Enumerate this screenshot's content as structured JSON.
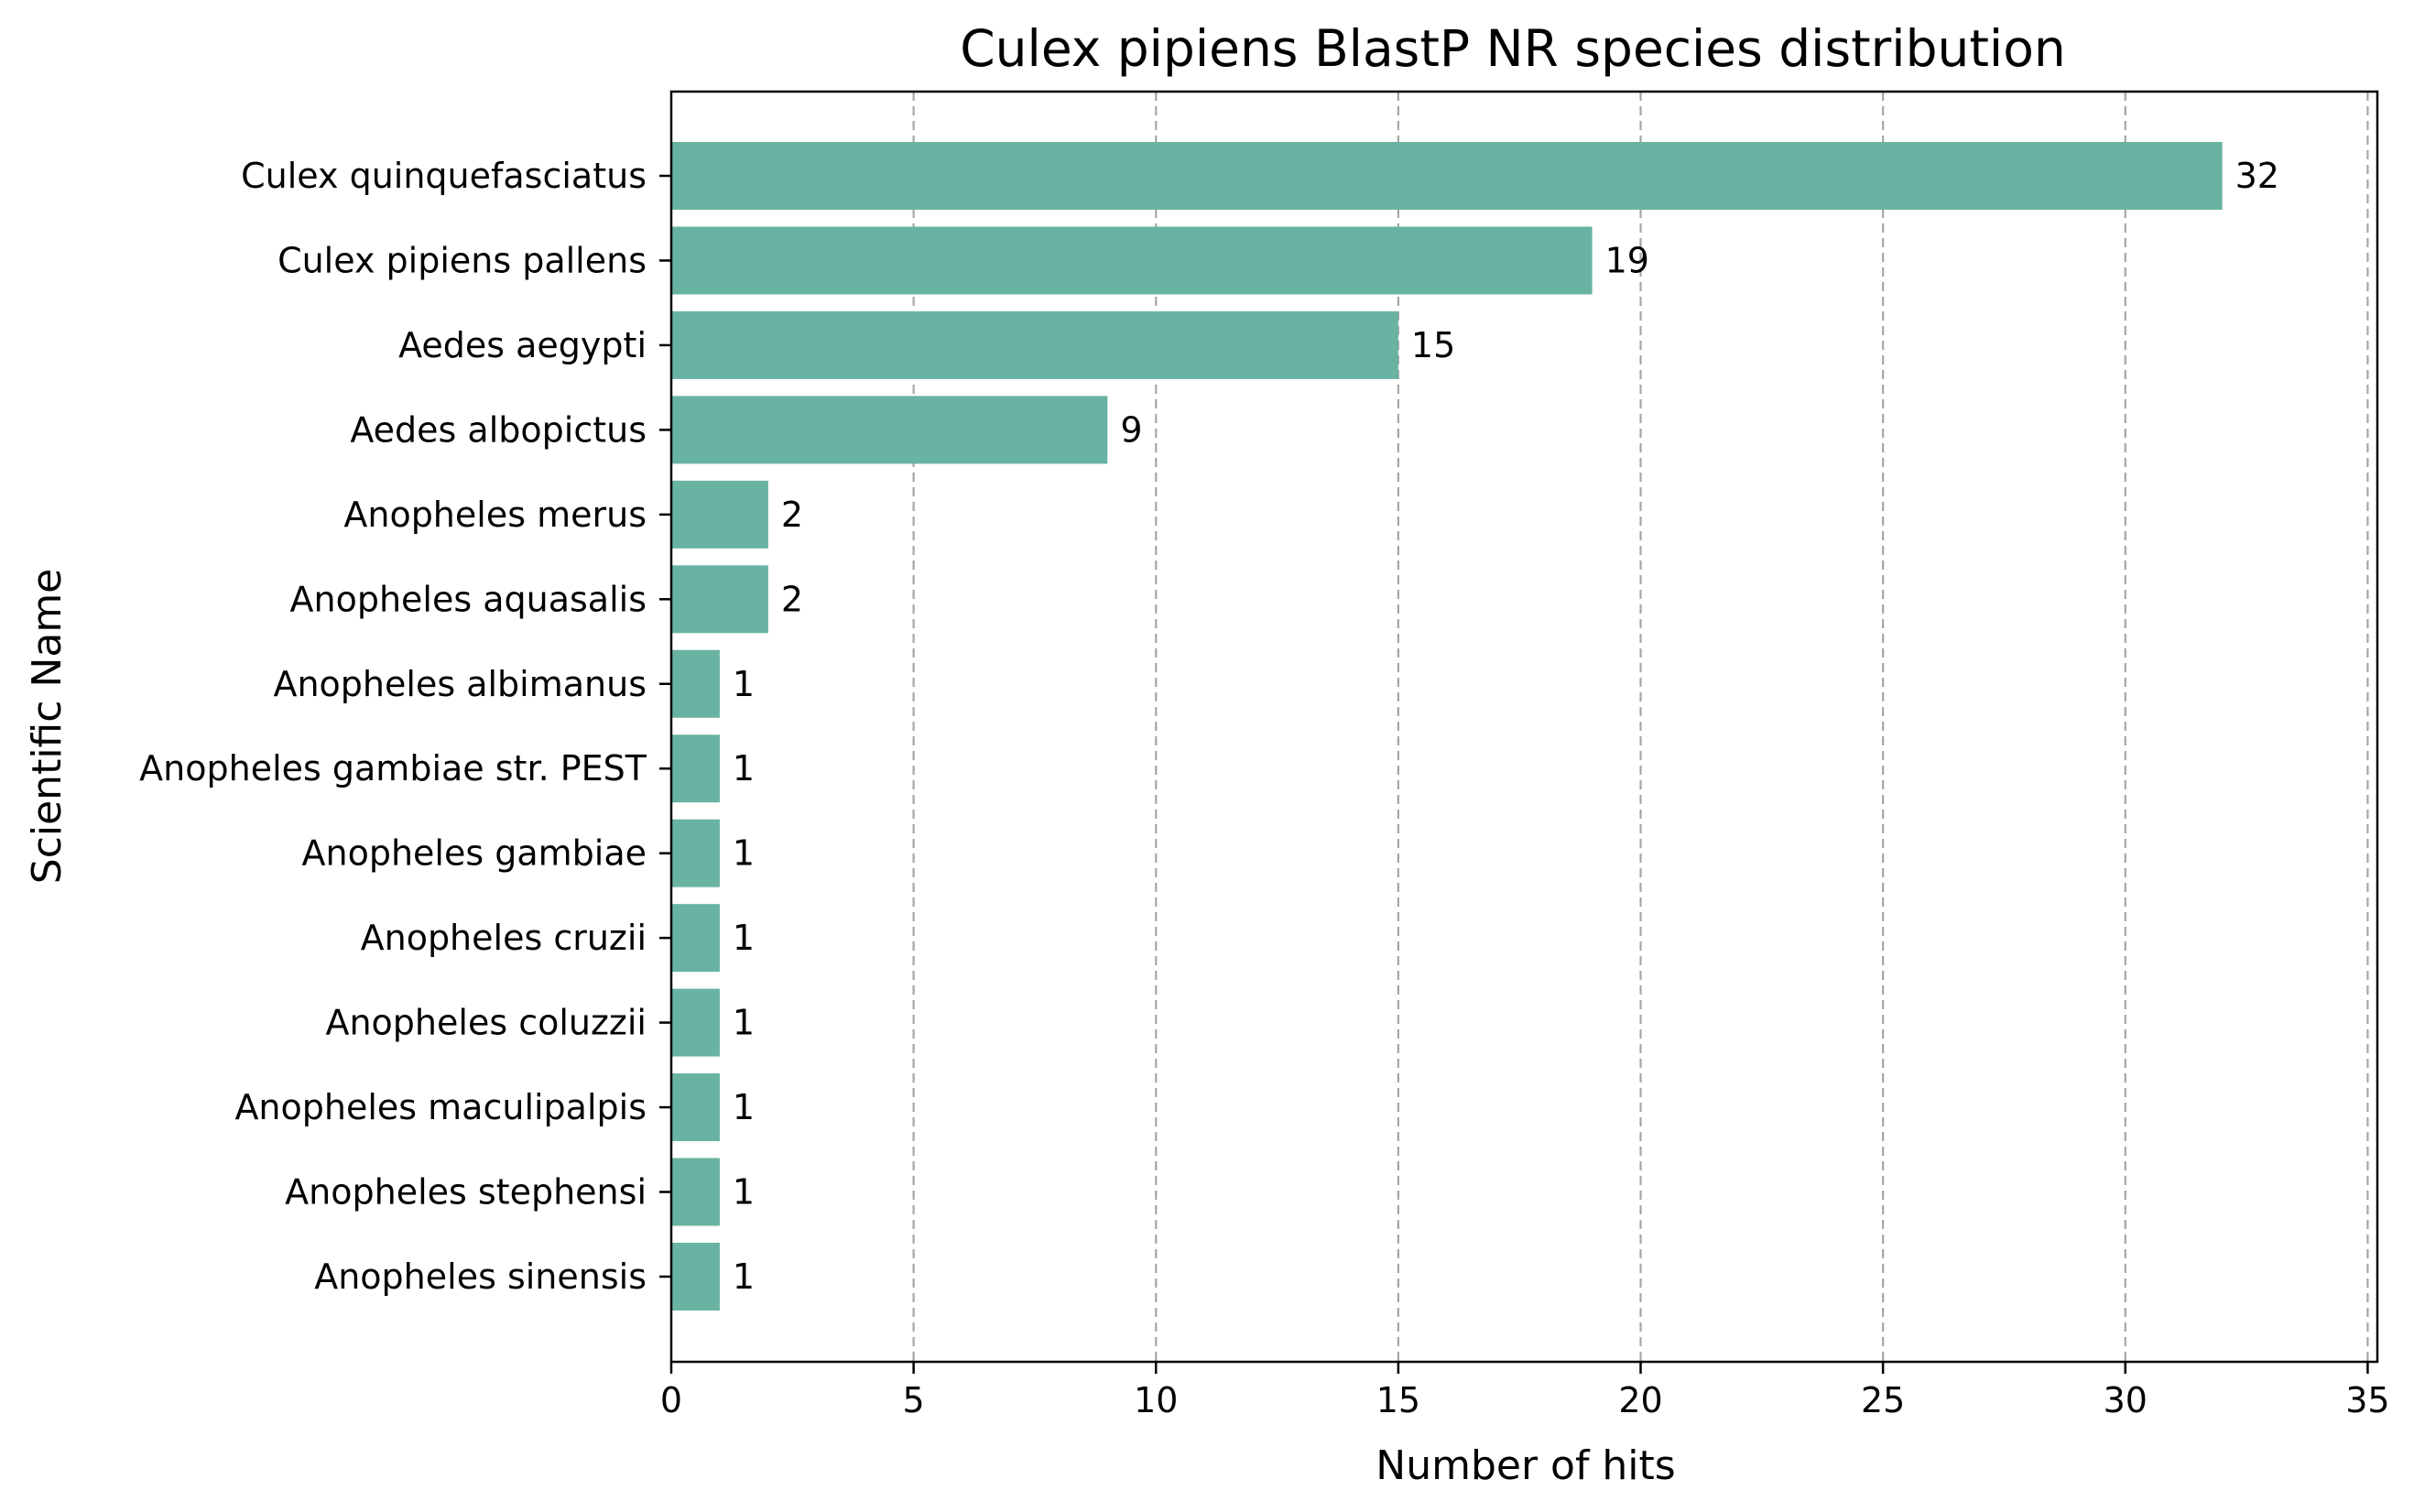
{
  "chart_data": {
    "type": "bar",
    "orientation": "horizontal",
    "title": "Culex pipiens BlastP NR species distribution",
    "xlabel": "Number of hits",
    "ylabel": "Scientific Name",
    "xlim": [
      0,
      35.2
    ],
    "xticks": [
      0,
      5,
      10,
      15,
      20,
      25,
      30,
      35
    ],
    "grid": "x-dashed",
    "bar_color": "#69b3a2",
    "categories": [
      "Culex quinquefasciatus",
      "Culex pipiens pallens",
      "Aedes aegypti",
      "Aedes albopictus",
      "Anopheles merus",
      "Anopheles aquasalis",
      "Anopheles albimanus",
      "Anopheles gambiae str. PEST",
      "Anopheles gambiae",
      "Anopheles cruzii",
      "Anopheles coluzzii",
      "Anopheles maculipalpis",
      "Anopheles stephensi",
      "Anopheles sinensis"
    ],
    "values": [
      32,
      19,
      15,
      9,
      2,
      2,
      1,
      1,
      1,
      1,
      1,
      1,
      1,
      1
    ]
  }
}
